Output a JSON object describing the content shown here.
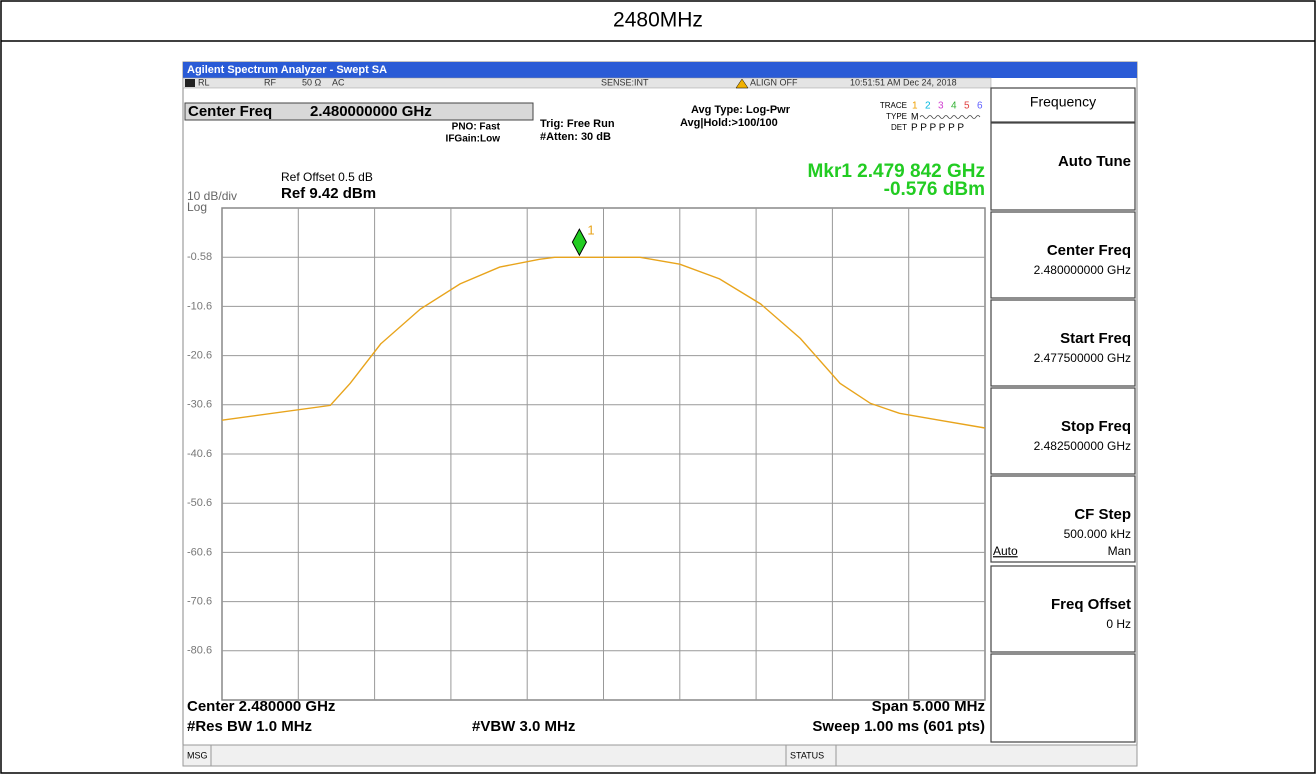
{
  "header": {
    "title": "2480MHz"
  },
  "window": {
    "title": "Agilent Spectrum Analyzer - Swept SA"
  },
  "status_bar": {
    "ref_level": "RL",
    "input": "RF",
    "impedance": "50 Ω",
    "coupling": "AC",
    "sense": "SENSE:INT",
    "align": "ALIGN OFF",
    "datetime": "10:51:51 AM Dec 24, 2018"
  },
  "settings": {
    "center_freq_label": "Center Freq",
    "center_freq_value": "2.480000000 GHz",
    "pno": "PNO: Fast",
    "ifgain": "IFGain:Low",
    "trig": "Trig: Free Run",
    "atten": "#Atten: 30 dB",
    "avg_type": "Avg Type: Log-Pwr",
    "avg_hold": "Avg|Hold:>100/100"
  },
  "trace_panel": {
    "trace": "TRACE",
    "trace_numbers": [
      "1",
      "2",
      "3",
      "4",
      "5",
      "6"
    ],
    "type": "TYPE",
    "type_value": "M",
    "det": "DET",
    "det_values": "P P P P P P"
  },
  "ref": {
    "offset": "Ref Offset 0.5 dB",
    "scale": "10 dB/div",
    "level": "Ref 9.42 dBm",
    "log": "Log"
  },
  "marker_readout": {
    "freq": "Mkr1 2.479 842 GHz",
    "amp": "-0.576 dBm"
  },
  "footer": {
    "center": "Center 2.480000 GHz",
    "span": "Span 5.000 MHz",
    "rbw": "#Res BW 1.0 MHz",
    "vbw": "#VBW 3.0 MHz",
    "sweep": "Sweep  1.00 ms (601 pts)"
  },
  "softkeys": [
    {
      "label": "Frequency"
    },
    {
      "label": "Auto Tune"
    },
    {
      "label": "Center Freq",
      "value": "2.480000000 GHz"
    },
    {
      "label": "Start Freq",
      "value": "2.477500000 GHz"
    },
    {
      "label": "Stop Freq",
      "value": "2.482500000 GHz"
    },
    {
      "label": "CF Step",
      "value": "500.000 kHz",
      "options": [
        "Auto",
        "Man"
      ]
    },
    {
      "label": "Freq Offset",
      "value": "0 Hz"
    }
  ],
  "bottom_bar": {
    "msg": "MSG",
    "status": "STATUS"
  },
  "chart_data": {
    "type": "line",
    "x": [
      2.4775,
      2.47821,
      2.47834,
      2.47854,
      2.4788,
      2.47906,
      2.47932,
      2.47958,
      2.47968,
      2.48024,
      2.4805,
      2.48076,
      2.48103,
      2.48129,
      2.48155,
      2.48175,
      2.48194,
      2.4822,
      2.4825
    ],
    "series": [
      {
        "color": "#e8a41c",
        "values": [
          -33.7,
          -30.7,
          -26.2,
          -18.2,
          -11.1,
          -6.0,
          -2.6,
          -1.0,
          -0.6,
          -0.6,
          -2.0,
          -5.0,
          -10.1,
          -17.1,
          -26.2,
          -30.3,
          -32.3,
          -33.7,
          -35.3
        ]
      }
    ],
    "xlim": [
      2.4775,
      2.4825
    ],
    "ylim": [
      -90.58,
      9.42
    ],
    "yticks": [
      -0.58,
      {
        "value": -10.58,
        "label": "-10.6"
      },
      {
        "value": -20.58,
        "label": "-20.6"
      },
      {
        "value": -30.58,
        "label": "-30.6"
      },
      {
        "value": -40.58,
        "label": "-40.6"
      },
      {
        "value": -50.58,
        "label": "-50.6"
      },
      {
        "value": -60.58,
        "label": "-60.6"
      },
      {
        "value": -70.58,
        "label": "-70.6"
      },
      {
        "value": -80.58,
        "label": "-80.6"
      }
    ],
    "grid": true,
    "marker": {
      "name": "1",
      "x": 2.479842,
      "y": -0.576,
      "color": "#22cc22"
    }
  }
}
